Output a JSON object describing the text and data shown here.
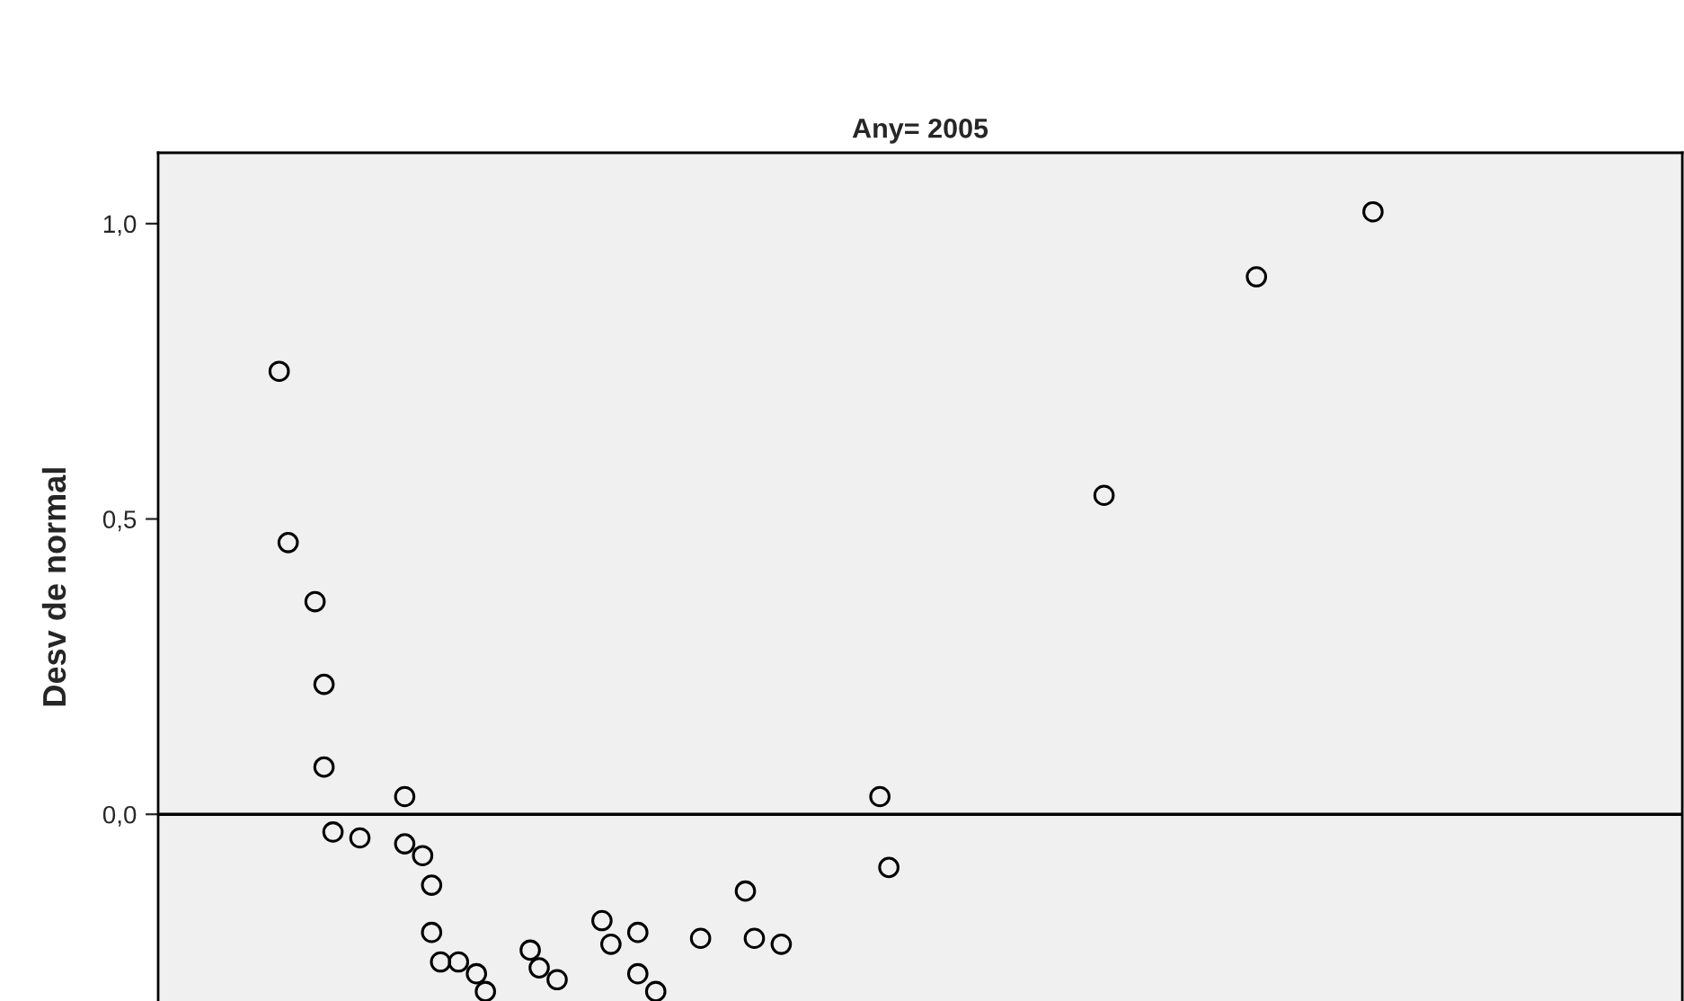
{
  "chart_data": {
    "type": "scatter",
    "title": "Any= 2005",
    "ylabel": "Desv de normal",
    "categories": [
      null,
      null,
      null,
      null,
      null,
      null,
      null,
      null,
      null,
      null,
      null,
      null,
      null,
      null,
      null,
      null,
      null,
      null,
      null,
      null,
      null,
      null,
      null,
      null,
      null,
      null,
      null,
      null,
      null,
      null,
      null,
      null,
      null,
      null,
      null,
      null,
      null,
      null,
      null,
      null,
      null,
      null,
      null,
      null,
      null,
      null,
      null,
      null,
      null,
      null,
      null,
      null,
      null,
      null,
      null,
      null,
      null,
      null,
      null,
      null,
      null,
      null,
      null,
      null,
      null,
      null,
      null,
      null,
      null,
      null,
      null,
      null,
      null,
      null,
      null,
      null,
      null,
      null,
      null,
      null,
      null,
      null,
      null,
      null,
      null,
      null,
      null,
      null,
      null,
      null,
      null,
      null,
      null,
      null,
      null,
      null,
      null,
      null,
      null,
      null,
      null,
      null,
      null,
      null,
      null,
      null,
      null,
      null,
      null,
      null,
      null,
      null,
      null,
      null,
      null,
      null,
      null,
      null,
      null,
      null,
      null,
      null,
      null,
      null,
      null,
      null,
      null,
      null,
      null,
      null,
      null,
      null,
      null,
      null,
      null,
      null,
      null,
      null,
      null,
      null,
      null,
      null,
      null,
      null,
      null,
      null,
      null,
      null,
      null,
      null,
      null,
      null,
      null,
      null,
      null,
      null,
      null,
      null,
      null,
      null,
      null,
      null,
      null,
      null,
      null,
      null,
      null,
      null,
      null,
      null
    ],
    "series": [
      {
        "color": "#000000",
        "values": [
          null,
          null,
          null,
          null,
          null,
          null,
          null,
          null,
          null,
          null,
          null,
          null,
          null,
          0.75,
          0.46,
          null,
          null,
          0.36,
          0.22,
          -0.03,
          null,
          null,
          -0.04,
          null,
          null,
          null,
          null,
          0.03,
          null,
          -0.07,
          -0.12,
          -0.25,
          null,
          -0.25,
          null,
          -0.27,
          -0.3,
          null,
          null,
          null,
          null,
          -0.23,
          -0.26,
          null,
          -0.28,
          null,
          null,
          null,
          null,
          -0.18,
          -0.22,
          null,
          null,
          -0.2,
          null,
          -0.3,
          null,
          null,
          null,
          null,
          -0.21,
          null,
          null,
          null,
          null,
          -0.13,
          -0.21,
          null,
          null,
          -0.22,
          null,
          null,
          null,
          null,
          null,
          null,
          null,
          null,
          null,
          null,
          0.03,
          -0.09,
          null,
          null,
          null,
          null,
          null,
          null,
          null,
          null,
          null,
          null,
          null,
          null,
          null,
          null,
          null,
          null,
          null,
          null,
          null,
          null,
          null,
          null,
          null,
          0.54,
          null,
          null,
          null,
          null,
          null,
          null,
          null,
          null,
          null,
          null,
          null,
          null,
          null,
          null,
          null,
          null,
          0.91,
          null,
          null,
          null,
          null,
          null,
          null,
          null,
          null,
          null,
          null,
          null,
          null,
          1.02,
          null,
          null,
          null,
          null,
          null,
          null,
          null,
          null,
          null,
          null,
          null,
          null,
          null,
          null,
          null,
          null,
          null,
          null,
          null,
          null,
          null,
          null,
          null,
          null,
          null,
          null,
          null,
          null,
          null,
          null,
          null,
          null,
          null,
          null
        ]
      },
      {
        "color": "#000000",
        "values": [
          null,
          null,
          null,
          null,
          null,
          null,
          null,
          null,
          null,
          null,
          null,
          null,
          null,
          null,
          null,
          null,
          null,
          null,
          0.08,
          null,
          null,
          null,
          null,
          null,
          null,
          null,
          null,
          -0.05,
          null,
          null,
          -0.2,
          null,
          null,
          null,
          null,
          null,
          null,
          null,
          null,
          null,
          null,
          null,
          null,
          null,
          null,
          null,
          null,
          null,
          null,
          null,
          null,
          null,
          null,
          -0.27,
          null,
          null,
          null,
          null,
          null,
          null,
          null,
          null,
          null,
          null,
          null,
          null,
          null,
          null,
          null,
          null,
          null,
          null,
          null,
          null,
          null,
          null,
          null,
          null,
          null,
          null,
          null,
          null,
          null,
          null,
          null,
          null,
          null,
          null,
          null,
          null,
          null,
          null,
          null,
          null,
          null,
          null,
          null,
          null,
          null,
          null,
          null,
          null,
          null,
          null,
          null,
          null,
          null,
          null,
          null,
          null,
          null,
          null,
          null,
          null,
          null,
          null,
          null,
          null,
          null,
          null,
          null,
          null,
          null,
          null,
          null,
          null,
          null,
          null,
          null,
          null,
          null,
          null,
          null,
          null,
          null,
          null,
          null,
          null,
          null,
          null,
          null,
          null,
          null,
          null,
          null,
          null,
          null,
          null,
          null,
          null,
          null,
          null,
          null,
          null,
          null,
          null,
          null,
          null,
          null,
          null,
          null,
          null,
          null,
          null,
          null,
          null,
          null,
          null,
          null,
          null
        ]
      }
    ],
    "ylim": [
      -0.35,
      1.12
    ],
    "yticks": [
      {
        "value": 0.0,
        "label": "0,0"
      },
      {
        "value": 0.5,
        "label": "0,5"
      },
      {
        "value": 1.0,
        "label": "1,0"
      }
    ],
    "ref_lines": [
      {
        "axis": "y",
        "value": 0,
        "color": "#000000"
      }
    ],
    "tick_labels": "y",
    "marker": "circle",
    "grid": false,
    "legend": false
  }
}
